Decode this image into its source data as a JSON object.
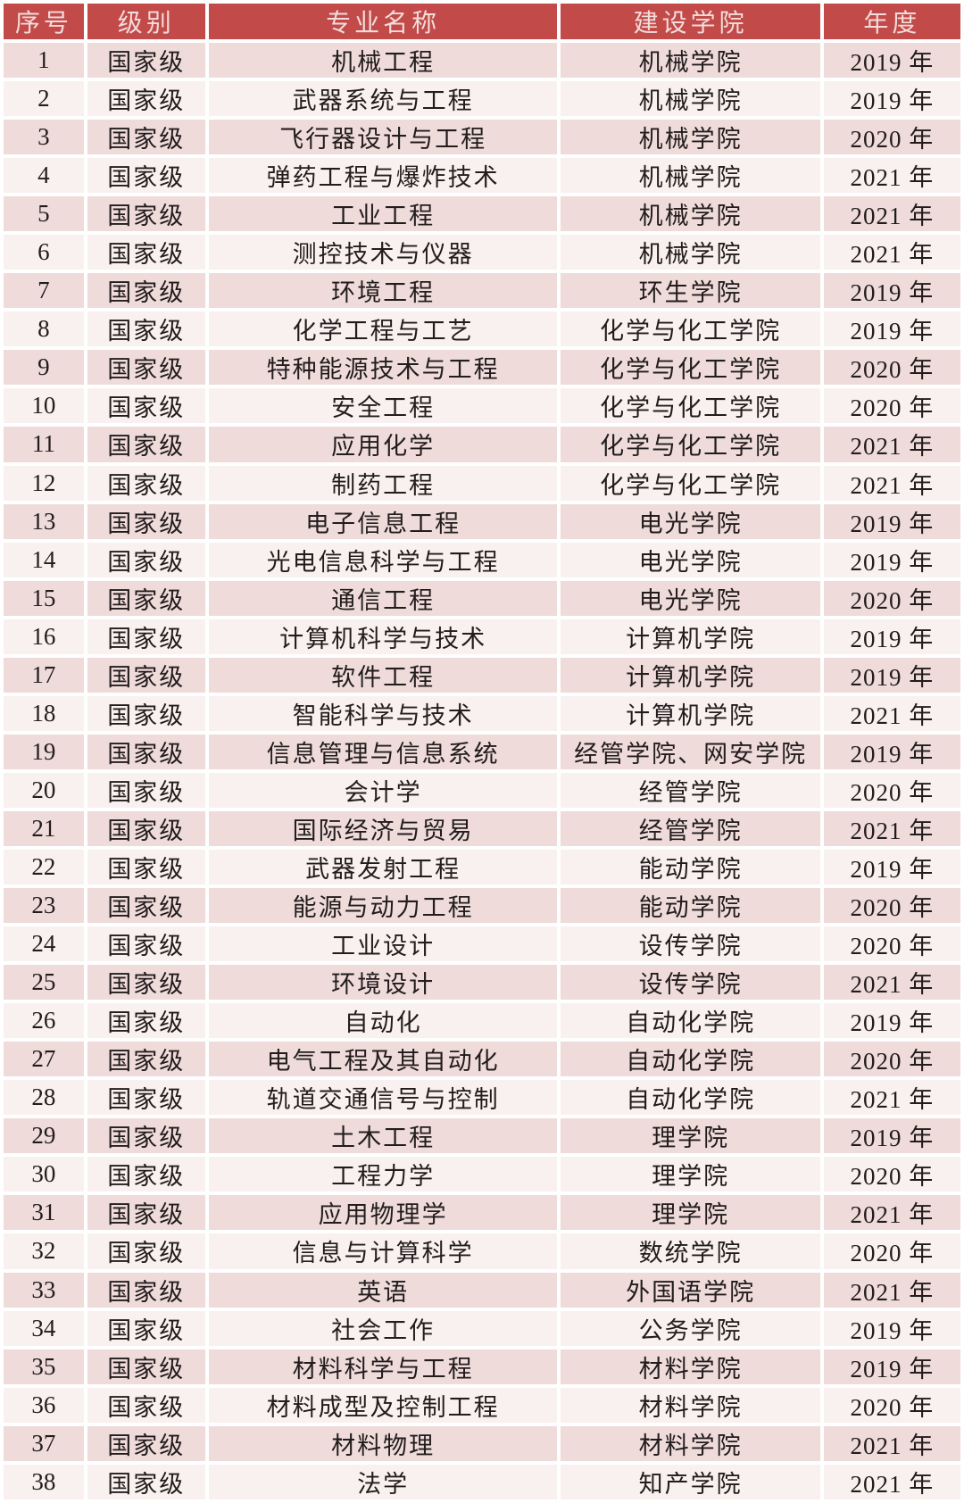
{
  "table": {
    "columns": [
      "序号",
      "级别",
      "专业名称",
      "建设学院",
      "年度"
    ],
    "rows": [
      [
        "1",
        "国家级",
        "机械工程",
        "机械学院",
        "2019 年"
      ],
      [
        "2",
        "国家级",
        "武器系统与工程",
        "机械学院",
        "2019 年"
      ],
      [
        "3",
        "国家级",
        "飞行器设计与工程",
        "机械学院",
        "2020 年"
      ],
      [
        "4",
        "国家级",
        "弹药工程与爆炸技术",
        "机械学院",
        "2021 年"
      ],
      [
        "5",
        "国家级",
        "工业工程",
        "机械学院",
        "2021 年"
      ],
      [
        "6",
        "国家级",
        "测控技术与仪器",
        "机械学院",
        "2021 年"
      ],
      [
        "7",
        "国家级",
        "环境工程",
        "环生学院",
        "2019 年"
      ],
      [
        "8",
        "国家级",
        "化学工程与工艺",
        "化学与化工学院",
        "2019 年"
      ],
      [
        "9",
        "国家级",
        "特种能源技术与工程",
        "化学与化工学院",
        "2020 年"
      ],
      [
        "10",
        "国家级",
        "安全工程",
        "化学与化工学院",
        "2020 年"
      ],
      [
        "11",
        "国家级",
        "应用化学",
        "化学与化工学院",
        "2021 年"
      ],
      [
        "12",
        "国家级",
        "制药工程",
        "化学与化工学院",
        "2021 年"
      ],
      [
        "13",
        "国家级",
        "电子信息工程",
        "电光学院",
        "2019 年"
      ],
      [
        "14",
        "国家级",
        "光电信息科学与工程",
        "电光学院",
        "2019 年"
      ],
      [
        "15",
        "国家级",
        "通信工程",
        "电光学院",
        "2020 年"
      ],
      [
        "16",
        "国家级",
        "计算机科学与技术",
        "计算机学院",
        "2019 年"
      ],
      [
        "17",
        "国家级",
        "软件工程",
        "计算机学院",
        "2019 年"
      ],
      [
        "18",
        "国家级",
        "智能科学与技术",
        "计算机学院",
        "2021 年"
      ],
      [
        "19",
        "国家级",
        "信息管理与信息系统",
        "经管学院、网安学院",
        "2019 年"
      ],
      [
        "20",
        "国家级",
        "会计学",
        "经管学院",
        "2020 年"
      ],
      [
        "21",
        "国家级",
        "国际经济与贸易",
        "经管学院",
        "2021 年"
      ],
      [
        "22",
        "国家级",
        "武器发射工程",
        "能动学院",
        "2019 年"
      ],
      [
        "23",
        "国家级",
        "能源与动力工程",
        "能动学院",
        "2020 年"
      ],
      [
        "24",
        "国家级",
        "工业设计",
        "设传学院",
        "2020 年"
      ],
      [
        "25",
        "国家级",
        "环境设计",
        "设传学院",
        "2021 年"
      ],
      [
        "26",
        "国家级",
        "自动化",
        "自动化学院",
        "2019 年"
      ],
      [
        "27",
        "国家级",
        "电气工程及其自动化",
        "自动化学院",
        "2020 年"
      ],
      [
        "28",
        "国家级",
        "轨道交通信号与控制",
        "自动化学院",
        "2021 年"
      ],
      [
        "29",
        "国家级",
        "土木工程",
        "理学院",
        "2019 年"
      ],
      [
        "30",
        "国家级",
        "工程力学",
        "理学院",
        "2020 年"
      ],
      [
        "31",
        "国家级",
        "应用物理学",
        "理学院",
        "2021 年"
      ],
      [
        "32",
        "国家级",
        "信息与计算科学",
        "数统学院",
        "2020 年"
      ],
      [
        "33",
        "国家级",
        "英语",
        "外国语学院",
        "2021 年"
      ],
      [
        "34",
        "国家级",
        "社会工作",
        "公务学院",
        "2019 年"
      ],
      [
        "35",
        "国家级",
        "材料科学与工程",
        "材料学院",
        "2019 年"
      ],
      [
        "36",
        "国家级",
        "材料成型及控制工程",
        "材料学院",
        "2020 年"
      ],
      [
        "37",
        "国家级",
        "材料物理",
        "材料学院",
        "2021 年"
      ],
      [
        "38",
        "国家级",
        "法学",
        "知产学院",
        "2021 年"
      ]
    ]
  },
  "colors": {
    "header_bg": "#c24b49",
    "header_text": "#f2dcdb",
    "row_odd_bg": "#eedbda",
    "row_even_bg": "#f8f1f0",
    "body_text": "#221c1c",
    "gutter": "#ffffff"
  }
}
